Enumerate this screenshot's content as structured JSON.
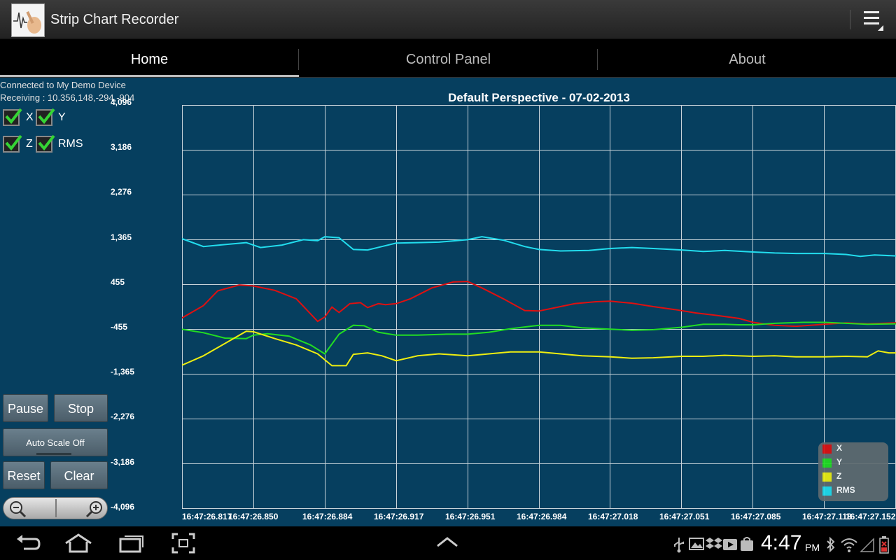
{
  "app": {
    "title": "Strip Chart Recorder"
  },
  "tabs": [
    {
      "label": "Home",
      "active": true
    },
    {
      "label": "Control Panel",
      "active": false
    },
    {
      "label": "About",
      "active": false
    }
  ],
  "status": {
    "connection": "Connected to My Demo Device",
    "receiving": "Receiving : 10.356,148,-294,-904"
  },
  "checkboxes": [
    {
      "label": "X",
      "checked": true
    },
    {
      "label": "Y",
      "checked": true
    },
    {
      "label": "Z",
      "checked": true
    },
    {
      "label": "RMS",
      "checked": true
    }
  ],
  "buttons": {
    "pause": "Pause",
    "stop": "Stop",
    "autoscale": "Auto Scale Off",
    "reset": "Reset",
    "clear": "Clear"
  },
  "icons": {
    "zoom_out": "zoom-out-icon",
    "zoom_in": "zoom-in-icon",
    "overflow": "overflow-menu-icon"
  },
  "chart_data": {
    "type": "line",
    "title": "Default Perspective - 07-02-2013",
    "xlabel": "",
    "ylabel": "",
    "ylim": [
      -4096,
      4096
    ],
    "grid": true,
    "legend_position": "bottom-right",
    "y_ticks": [
      "4,096",
      "3,186",
      "2,276",
      "1,365",
      "455",
      "-455",
      "-1,365",
      "-2,276",
      "-3,186",
      "-4,096"
    ],
    "x_ticks": [
      "16:47:26.817",
      "16:47:26.850",
      "16:47:26.884",
      "16:47:26.917",
      "16:47:26.951",
      "16:47:26.984",
      "16:47:27.018",
      "16:47:27.051",
      "16:47:27.085",
      "16:47:27.118",
      "16:47:27.152"
    ],
    "series": [
      {
        "name": "X",
        "color": "#e01010",
        "x": [
          0,
          0.3,
          0.5,
          0.8,
          1,
          1.3,
          1.6,
          1.9,
          2.0,
          2.1,
          2.2,
          2.35,
          2.5,
          2.6,
          2.75,
          2.85,
          3.0,
          3.2,
          3.5,
          3.8,
          4.0,
          4.2,
          4.5,
          4.8,
          5.0,
          5.2,
          5.5,
          5.8,
          6.0,
          6.3,
          6.6,
          6.9,
          7.2,
          7.5,
          7.8,
          8.0,
          8.3,
          8.6,
          9.0,
          9.3,
          9.6,
          10.0
        ],
        "values": [
          -230,
          20,
          320,
          440,
          420,
          330,
          160,
          -300,
          -210,
          -10,
          -120,
          60,
          80,
          -20,
          60,
          40,
          60,
          160,
          380,
          500,
          510,
          380,
          160,
          -80,
          -90,
          -30,
          60,
          100,
          110,
          70,
          0,
          -60,
          -130,
          -180,
          -240,
          -320,
          -380,
          -400,
          -360,
          -330,
          -350,
          -330
        ]
      },
      {
        "name": "Y",
        "color": "#22dd22",
        "x": [
          0,
          0.3,
          0.6,
          0.9,
          1.0,
          1.2,
          1.5,
          1.8,
          2.0,
          2.2,
          2.4,
          2.55,
          2.75,
          3.0,
          3.3,
          3.7,
          4.0,
          4.3,
          4.6,
          5.0,
          5.3,
          5.6,
          6.0,
          6.3,
          6.6,
          7.0,
          7.3,
          7.6,
          7.8,
          8.0,
          8.3,
          8.7,
          9.0,
          9.3,
          9.6,
          10.0
        ],
        "values": [
          -460,
          -530,
          -640,
          -650,
          -580,
          -550,
          -600,
          -780,
          -960,
          -560,
          -380,
          -390,
          -520,
          -580,
          -580,
          -560,
          -560,
          -520,
          -450,
          -380,
          -380,
          -430,
          -460,
          -480,
          -470,
          -420,
          -360,
          -360,
          -370,
          -370,
          -340,
          -320,
          -320,
          -340,
          -360,
          -350
        ]
      },
      {
        "name": "Z",
        "color": "#eeee10",
        "x": [
          0,
          0.3,
          0.6,
          0.9,
          1.0,
          1.3,
          1.6,
          1.9,
          2.1,
          2.3,
          2.4,
          2.6,
          2.8,
          3.0,
          3.3,
          3.6,
          4.0,
          4.3,
          4.6,
          5.0,
          5.3,
          5.6,
          6.0,
          6.3,
          6.6,
          7.0,
          7.3,
          7.6,
          8.0,
          8.3,
          8.6,
          9.0,
          9.3,
          9.6,
          9.75,
          9.9,
          10.0
        ],
        "values": [
          -1190,
          -1000,
          -750,
          -500,
          -510,
          -650,
          -780,
          -960,
          -1200,
          -1200,
          -970,
          -940,
          -1000,
          -1100,
          -1000,
          -960,
          -1000,
          -960,
          -920,
          -920,
          -960,
          -1000,
          -1020,
          -1050,
          -1040,
          -1010,
          -1010,
          -990,
          -1010,
          -1000,
          -1020,
          -1020,
          -1010,
          -1020,
          -900,
          -940,
          -940
        ]
      },
      {
        "name": "RMS",
        "color": "#22ddee",
        "x": [
          0,
          0.3,
          0.6,
          0.9,
          1.1,
          1.4,
          1.7,
          1.9,
          2.0,
          2.2,
          2.4,
          2.6,
          2.8,
          3.0,
          3.3,
          3.6,
          4.0,
          4.2,
          4.5,
          4.8,
          5.0,
          5.3,
          5.7,
          6.0,
          6.3,
          6.6,
          7.0,
          7.3,
          7.6,
          8.0,
          8.3,
          8.6,
          9.0,
          9.3,
          9.5,
          9.7,
          10.0
        ],
        "values": [
          1380,
          1220,
          1260,
          1300,
          1200,
          1250,
          1360,
          1340,
          1420,
          1400,
          1160,
          1150,
          1220,
          1290,
          1300,
          1310,
          1360,
          1420,
          1350,
          1220,
          1160,
          1130,
          1140,
          1180,
          1200,
          1180,
          1150,
          1120,
          1140,
          1110,
          1090,
          1080,
          1080,
          1060,
          1020,
          1050,
          1030
        ]
      }
    ]
  },
  "system": {
    "time": "4:47",
    "ampm": "PM"
  }
}
